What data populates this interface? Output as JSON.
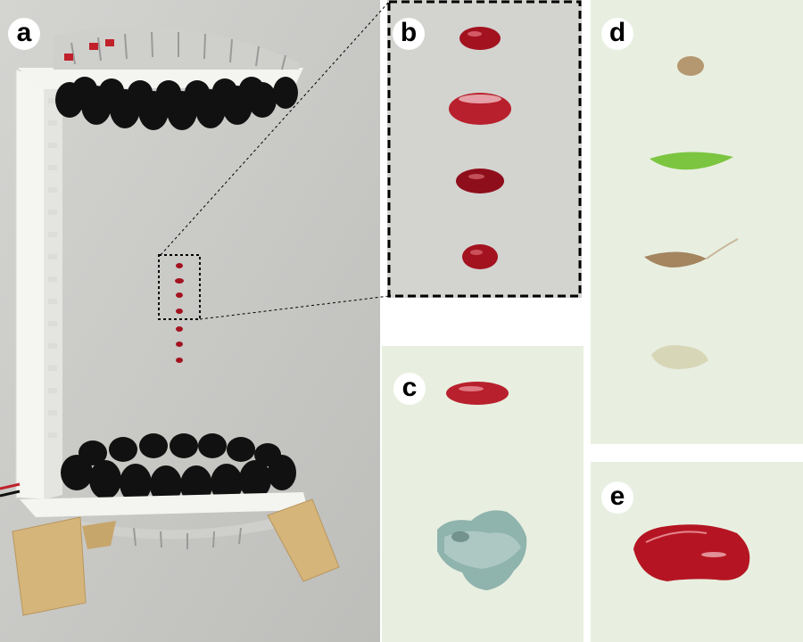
{
  "figure": {
    "panels": [
      {
        "id": "a",
        "label": "a"
      },
      {
        "id": "b",
        "label": "b"
      },
      {
        "id": "c",
        "label": "c"
      },
      {
        "id": "d",
        "label": "d"
      },
      {
        "id": "e",
        "label": "e"
      }
    ]
  },
  "colors": {
    "background_a": "#c9c9c6",
    "background_b": "#d3d3d0",
    "background_cde": "#e8efe0",
    "droplet_red": "#a3121f",
    "transducer_black": "#111111",
    "frame_white": "#f7f7f4",
    "wood": "#d6b57a",
    "leaf_green": "#7cc540",
    "seed_tan": "#b59770",
    "rock_teal": "#8fb3ad"
  }
}
